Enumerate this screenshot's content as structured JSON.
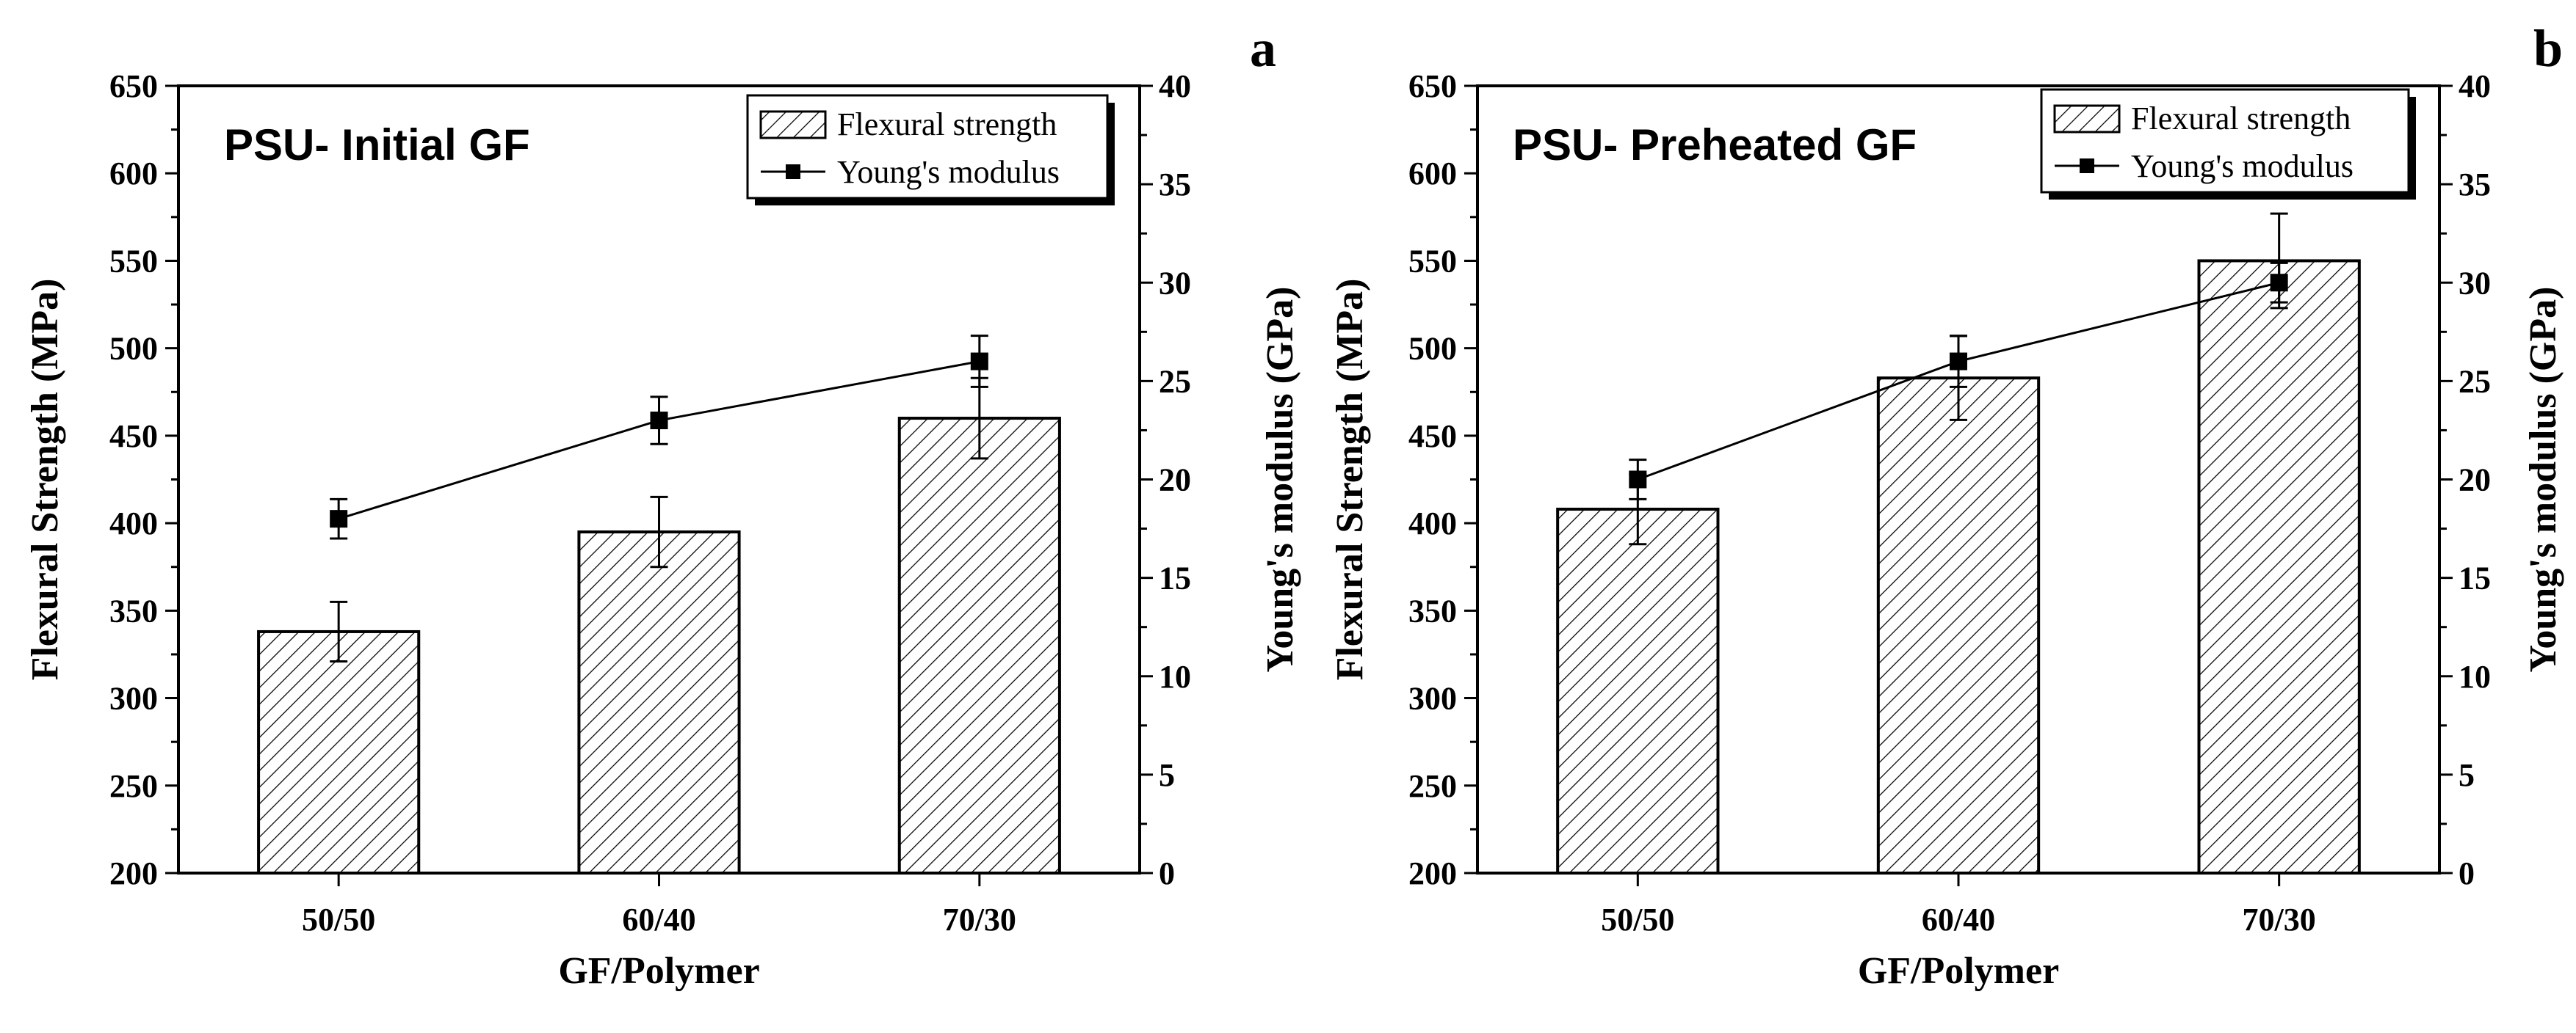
{
  "colors": {
    "ink": "#000000",
    "background": "#ffffff",
    "bar_fill": "#ffffff"
  },
  "chart_data": [
    {
      "type": "bar",
      "panel_label": "a",
      "title": "PSU- Initial GF",
      "xlabel": "GF/Polymer",
      "ylabel": "Flexural Strength (MPa)",
      "y2label": "Young's modulus (GPa)",
      "categories": [
        "50/50",
        "60/40",
        "70/30"
      ],
      "ylim": [
        200,
        650
      ],
      "yticks": [
        200,
        250,
        300,
        350,
        400,
        450,
        500,
        550,
        600,
        650
      ],
      "y2lim": [
        0,
        40
      ],
      "y2ticks": [
        0,
        5,
        10,
        15,
        20,
        25,
        30,
        35,
        40
      ],
      "legend": {
        "placement": "top-right",
        "entries": [
          "Flexural strength",
          "Young's modulus"
        ]
      },
      "series": [
        {
          "name": "Flexural strength",
          "type": "bar",
          "axis": "left",
          "values": [
            338,
            395,
            460
          ],
          "errors": [
            17,
            20,
            23
          ]
        },
        {
          "name": "Young's modulus",
          "type": "line",
          "axis": "right",
          "values": [
            18,
            23,
            26
          ],
          "errors": [
            1,
            1.2,
            1.3
          ]
        }
      ]
    },
    {
      "type": "bar",
      "panel_label": "b",
      "title": "PSU- Preheated GF",
      "xlabel": "GF/Polymer",
      "ylabel": "Flexural Strength (MPa)",
      "y2label": "Young's modulus (GPa)",
      "categories": [
        "50/50",
        "60/40",
        "70/30"
      ],
      "ylim": [
        200,
        650
      ],
      "yticks": [
        200,
        250,
        300,
        350,
        400,
        450,
        500,
        550,
        600,
        650
      ],
      "y2lim": [
        0,
        40
      ],
      "y2ticks": [
        0,
        5,
        10,
        15,
        20,
        25,
        30,
        35,
        40
      ],
      "legend": {
        "placement": "top-right",
        "entries": [
          "Flexural strength",
          "Young's modulus"
        ]
      },
      "series": [
        {
          "name": "Flexural strength",
          "type": "bar",
          "axis": "left",
          "values": [
            408,
            483,
            550
          ],
          "errors": [
            20,
            24,
            27
          ]
        },
        {
          "name": "Young's modulus",
          "type": "line",
          "axis": "right",
          "values": [
            20,
            26,
            30
          ],
          "errors": [
            1,
            1.3,
            1
          ]
        }
      ]
    }
  ]
}
